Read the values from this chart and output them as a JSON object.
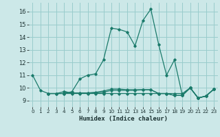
{
  "xlabel": "Humidex (Indice chaleur)",
  "xlim": [
    -0.5,
    23.5
  ],
  "ylim": [
    8.5,
    16.7
  ],
  "yticks": [
    9,
    10,
    11,
    12,
    13,
    14,
    15,
    16
  ],
  "xticks": [
    0,
    1,
    2,
    3,
    4,
    5,
    6,
    7,
    8,
    9,
    10,
    11,
    12,
    13,
    14,
    15,
    16,
    17,
    18,
    19,
    20,
    21,
    22,
    23
  ],
  "bg_color": "#cce8e8",
  "grid_color": "#99cccc",
  "line_color": "#1a7a6a",
  "lines": [
    {
      "x": [
        0,
        1,
        2,
        3,
        4,
        5,
        6,
        7,
        8,
        9,
        10,
        11,
        12,
        13,
        14,
        15,
        16,
        17,
        18,
        19,
        20,
        21,
        22,
        23
      ],
      "y": [
        11,
        9.8,
        9.55,
        9.55,
        9.55,
        9.7,
        10.7,
        11.0,
        11.1,
        12.2,
        14.7,
        14.6,
        14.4,
        13.3,
        15.3,
        16.2,
        13.4,
        11.0,
        12.2,
        9.4,
        10.0,
        9.2,
        9.35,
        9.9
      ]
    },
    {
      "x": [
        2,
        3,
        4,
        5,
        6,
        7,
        8,
        9,
        10,
        11,
        12,
        13,
        14,
        15,
        16,
        17,
        18,
        19,
        20,
        21,
        22,
        23
      ],
      "y": [
        9.55,
        9.55,
        9.55,
        9.55,
        9.55,
        9.55,
        9.55,
        9.55,
        9.55,
        9.55,
        9.55,
        9.55,
        9.55,
        9.55,
        9.55,
        9.55,
        9.55,
        9.55,
        10.0,
        9.2,
        9.35,
        9.9
      ]
    },
    {
      "x": [
        2,
        3,
        4,
        5,
        6,
        7,
        8,
        9,
        10,
        11,
        12,
        13,
        14,
        15,
        16,
        17,
        18,
        19,
        20,
        21,
        22,
        23
      ],
      "y": [
        9.55,
        9.55,
        9.7,
        9.6,
        9.6,
        9.6,
        9.6,
        9.65,
        9.8,
        9.8,
        9.8,
        9.8,
        9.85,
        9.85,
        9.55,
        9.55,
        9.4,
        9.4,
        10.0,
        9.2,
        9.35,
        9.9
      ]
    },
    {
      "x": [
        4,
        5,
        6,
        7,
        8,
        9,
        10,
        11,
        12,
        13,
        14,
        15,
        16,
        17,
        18,
        19,
        20,
        21,
        22,
        23
      ],
      "y": [
        9.7,
        9.6,
        9.6,
        9.6,
        9.65,
        9.75,
        9.9,
        9.9,
        9.85,
        9.85,
        9.85,
        9.85,
        9.55,
        9.55,
        9.4,
        9.4,
        10.0,
        9.2,
        9.35,
        9.9
      ]
    }
  ]
}
